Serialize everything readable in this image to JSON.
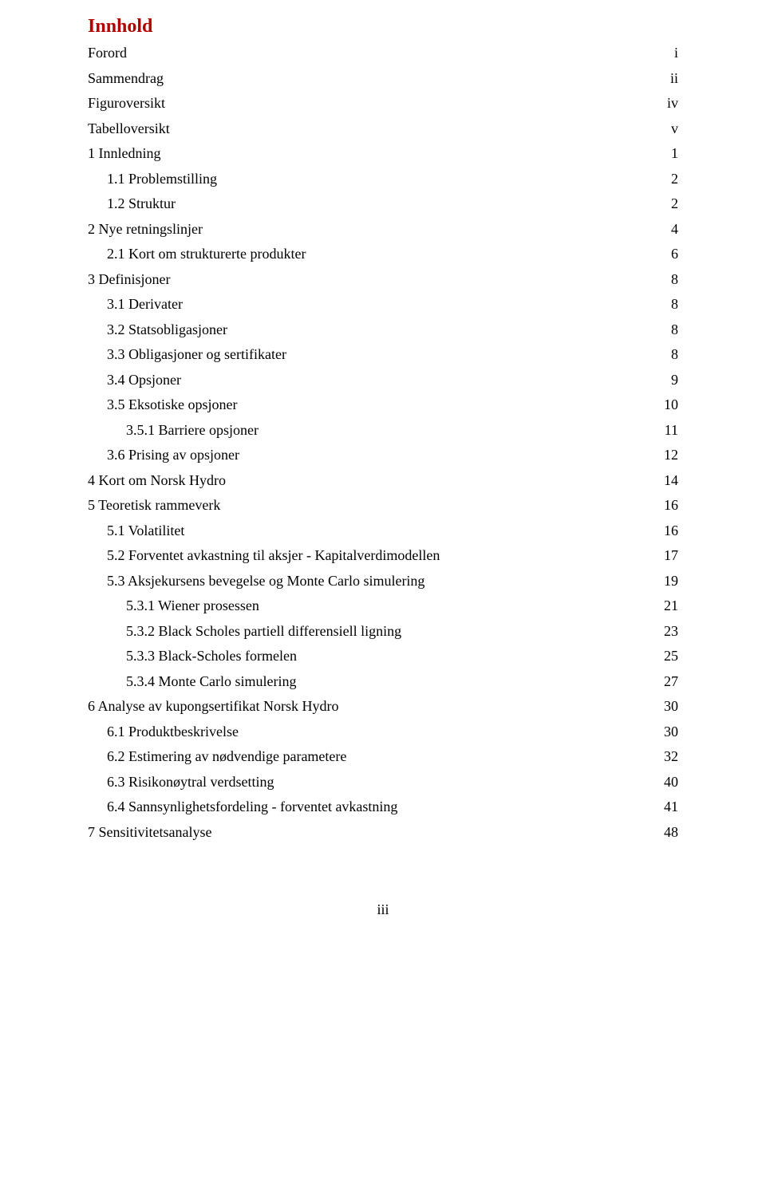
{
  "title": "Innhold",
  "title_color": "#b20000",
  "text_color": "#000000",
  "background_color": "#ffffff",
  "font_family": "Times New Roman",
  "title_fontsize": 24,
  "body_fontsize": 18,
  "toc": [
    {
      "label": "Forord",
      "page": "i",
      "indent": 0
    },
    {
      "label": "Sammendrag",
      "page": "ii",
      "indent": 0
    },
    {
      "label": "Figuroversikt",
      "page": "iv",
      "indent": 0
    },
    {
      "label": "Tabelloversikt",
      "page": "v",
      "indent": 0
    },
    {
      "label": "1 Innledning",
      "page": "1",
      "indent": 0
    },
    {
      "label": "1.1 Problemstilling",
      "page": "2",
      "indent": 1
    },
    {
      "label": "1.2 Struktur",
      "page": "2",
      "indent": 1
    },
    {
      "label": "2 Nye retningslinjer",
      "page": "4",
      "indent": 0
    },
    {
      "label": "2.1 Kort om strukturerte produkter",
      "page": "6",
      "indent": 1
    },
    {
      "label": "3 Definisjoner",
      "page": "8",
      "indent": 0
    },
    {
      "label": "3.1 Derivater",
      "page": "8",
      "indent": 1
    },
    {
      "label": "3.2 Statsobligasjoner",
      "page": "8",
      "indent": 1
    },
    {
      "label": "3.3 Obligasjoner og sertifikater",
      "page": "8",
      "indent": 1
    },
    {
      "label": "3.4 Opsjoner",
      "page": "9",
      "indent": 1
    },
    {
      "label": "3.5 Eksotiske opsjoner",
      "page": "10",
      "indent": 1
    },
    {
      "label": "3.5.1 Barriere opsjoner",
      "page": "11",
      "indent": 2
    },
    {
      "label": "3.6 Prising av opsjoner",
      "page": "12",
      "indent": 1
    },
    {
      "label": "4 Kort om Norsk Hydro",
      "page": "14",
      "indent": 0
    },
    {
      "label": "5 Teoretisk rammeverk",
      "page": "16",
      "indent": 0
    },
    {
      "label": "5.1 Volatilitet",
      "page": "16",
      "indent": 1
    },
    {
      "label": "5.2 Forventet avkastning til aksjer - Kapitalverdimodellen",
      "page": "17",
      "indent": 1
    },
    {
      "label": "5.3 Aksjekursens bevegelse og Monte Carlo simulering",
      "page": "19",
      "indent": 1
    },
    {
      "label": "5.3.1 Wiener prosessen",
      "page": "21",
      "indent": 2
    },
    {
      "label": "5.3.2 Black Scholes partiell differensiell ligning",
      "page": "23",
      "indent": 2
    },
    {
      "label": "5.3.3 Black-Scholes formelen",
      "page": "25",
      "indent": 2
    },
    {
      "label": "5.3.4 Monte Carlo simulering",
      "page": "27",
      "indent": 2
    },
    {
      "label": "6 Analyse av kupongsertifikat Norsk Hydro",
      "page": "30",
      "indent": 0
    },
    {
      "label": "6.1 Produktbeskrivelse",
      "page": "30",
      "indent": 1
    },
    {
      "label": "6.2 Estimering av nødvendige parametere",
      "page": "32",
      "indent": 1
    },
    {
      "label": "6.3 Risikonøytral verdsetting",
      "page": "40",
      "indent": 1
    },
    {
      "label": "6.4 Sannsynlighetsfordeling - forventet avkastning",
      "page": "41",
      "indent": 1
    },
    {
      "label": "7 Sensitivitetsanalyse",
      "page": "48",
      "indent": 0
    }
  ],
  "footer_page": "iii"
}
